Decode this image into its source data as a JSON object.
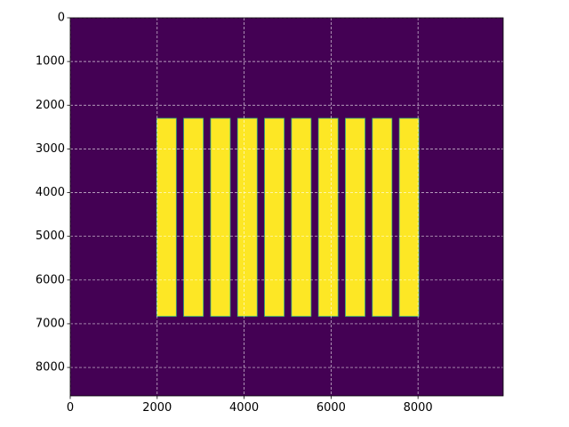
{
  "chart_data": {
    "type": "heatmap",
    "title": "",
    "xlabel": "",
    "ylabel": "",
    "xlim": [
      0,
      9960
    ],
    "ylim": [
      8650,
      0
    ],
    "grid": true,
    "colors": {
      "background": "#440154",
      "foreground": "#fde725",
      "edge": "#35b779",
      "grid": "#ffffff"
    },
    "xticks": [
      {
        "value": 0,
        "label": "0"
      },
      {
        "value": 2000,
        "label": "2000"
      },
      {
        "value": 4000,
        "label": "4000"
      },
      {
        "value": 6000,
        "label": "6000"
      },
      {
        "value": 8000,
        "label": "8000"
      }
    ],
    "yticks": [
      {
        "value": 0,
        "label": "0"
      },
      {
        "value": 1000,
        "label": "1000"
      },
      {
        "value": 2000,
        "label": "2000"
      },
      {
        "value": 3000,
        "label": "3000"
      },
      {
        "value": 4000,
        "label": "4000"
      },
      {
        "value": 5000,
        "label": "5000"
      },
      {
        "value": 6000,
        "label": "6000"
      },
      {
        "value": 7000,
        "label": "7000"
      },
      {
        "value": 8000,
        "label": "8000"
      }
    ],
    "bars": [
      {
        "x0": 1990,
        "x1": 2440,
        "y0": 2300,
        "y1": 6830
      },
      {
        "x0": 2610,
        "x1": 3060,
        "y0": 2300,
        "y1": 6830
      },
      {
        "x0": 3230,
        "x1": 3680,
        "y0": 2300,
        "y1": 6830
      },
      {
        "x0": 3850,
        "x1": 4300,
        "y0": 2300,
        "y1": 6830
      },
      {
        "x0": 4470,
        "x1": 4920,
        "y0": 2300,
        "y1": 6830
      },
      {
        "x0": 5090,
        "x1": 5540,
        "y0": 2300,
        "y1": 6830
      },
      {
        "x0": 5710,
        "x1": 6160,
        "y0": 2300,
        "y1": 6830
      },
      {
        "x0": 6330,
        "x1": 6780,
        "y0": 2300,
        "y1": 6830
      },
      {
        "x0": 6950,
        "x1": 7400,
        "y0": 2300,
        "y1": 6830
      },
      {
        "x0": 7570,
        "x1": 8020,
        "y0": 2300,
        "y1": 6830
      }
    ]
  }
}
